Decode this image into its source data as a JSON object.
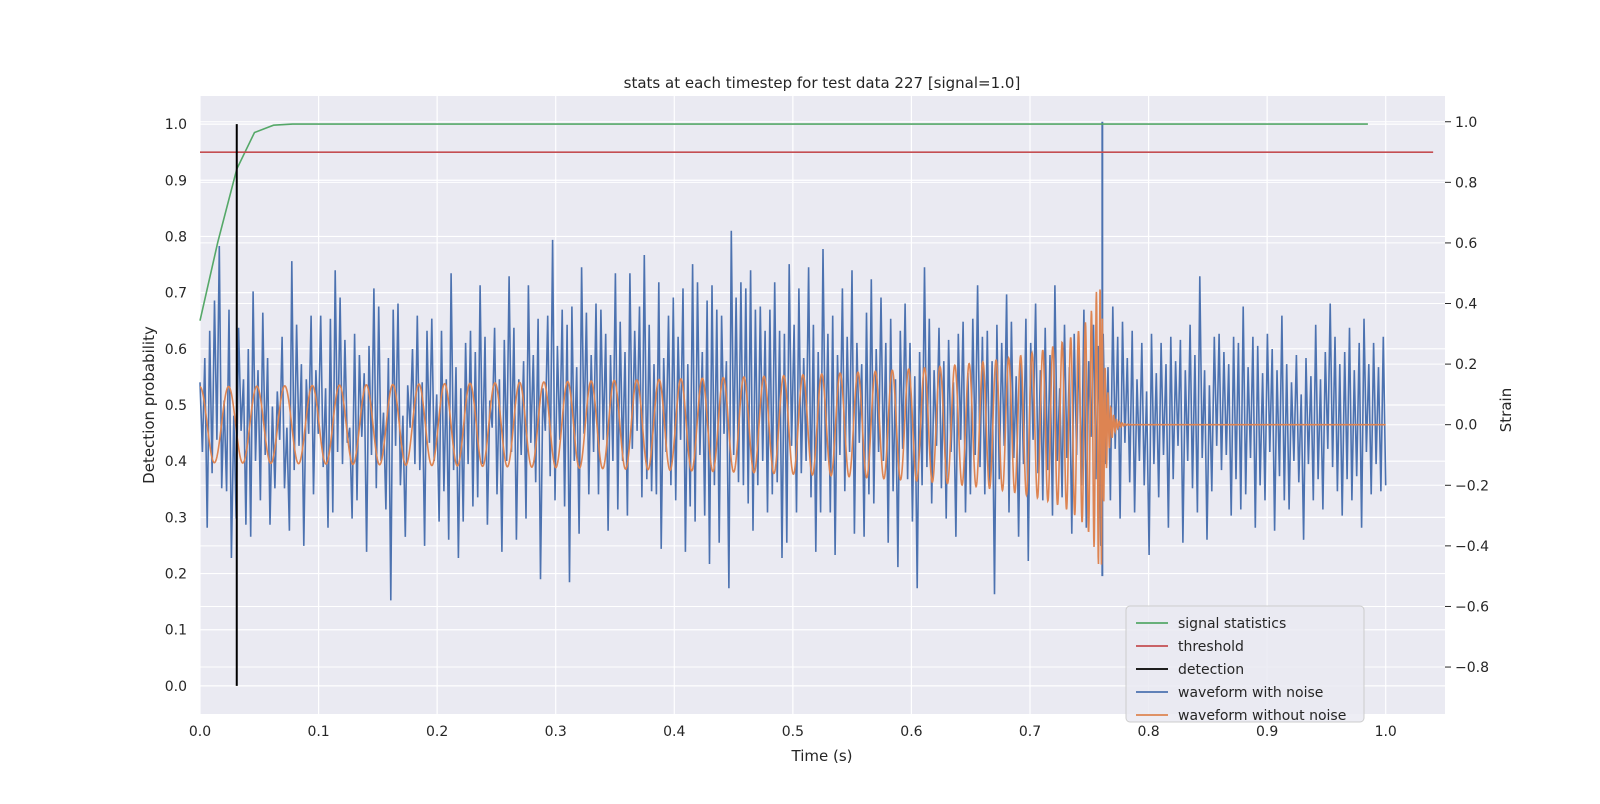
{
  "chart_data": {
    "type": "line",
    "title": "stats at each timestep for test data 227 [signal=1.0]",
    "xlabel": "Time (s)",
    "ylabel": "Detection probability",
    "y2label": "Strain",
    "xlim": [
      0.0,
      1.05
    ],
    "ylim": [
      -0.05,
      1.05
    ],
    "y2lim": [
      -0.955,
      1.085
    ],
    "grid": true,
    "xticks": [
      "0.0",
      "0.1",
      "0.2",
      "0.3",
      "0.4",
      "0.5",
      "0.6",
      "0.7",
      "0.8",
      "0.9",
      "1.0"
    ],
    "yticks": [
      "0.0",
      "0.1",
      "0.2",
      "0.3",
      "0.4",
      "0.5",
      "0.6",
      "0.7",
      "0.8",
      "0.9",
      "1.0"
    ],
    "y2ticks": [
      "−0.8",
      "−0.6",
      "−0.4",
      "−0.2",
      "0.0",
      "0.2",
      "0.4",
      "0.6",
      "0.8",
      "1.0"
    ],
    "legend_position": "lower-right",
    "colors": {
      "signal_statistics": "#55a868",
      "threshold": "#c44e52",
      "detection": "#000000",
      "waveform_with_noise": "#4c72b0",
      "waveform_without_noise": "#dd8452",
      "axes_bg": "#eaeaf2"
    },
    "series": [
      {
        "name": "signal statistics",
        "axis": "left",
        "x": [
          0.0,
          0.015,
          0.031,
          0.046,
          0.062,
          0.078,
          0.1,
          0.3,
          0.5,
          0.7,
          0.985
        ],
        "y": [
          0.65,
          0.79,
          0.92,
          0.985,
          0.998,
          1.0,
          1.0,
          1.0,
          1.0,
          1.0,
          1.0
        ]
      },
      {
        "name": "threshold",
        "axis": "left",
        "x": [
          0.0,
          1.04
        ],
        "y": [
          0.95,
          0.95
        ]
      },
      {
        "name": "detection",
        "axis": "left",
        "x": [
          0.031,
          0.031
        ],
        "y": [
          0.0,
          1.0
        ]
      },
      {
        "name": "waveform with noise",
        "axis": "right",
        "x_range": [
          0.0,
          1.0
        ],
        "y": [
          0.14,
          -0.09,
          0.22,
          -0.34,
          0.31,
          -0.16,
          0.41,
          -0.05,
          0.59,
          -0.21,
          0.08,
          -0.22,
          0.38,
          -0.44,
          0.03,
          -0.31,
          0.32,
          -0.02,
          0.15,
          -0.33,
          0.25,
          -0.37,
          0.44,
          -0.12,
          0.18,
          -0.25,
          0.37,
          -0.1,
          0.22,
          -0.33,
          0.06,
          -0.21,
          0.11,
          -0.05,
          0.29,
          -0.21,
          -0.01,
          -0.35,
          0.54,
          -0.15,
          0.33,
          -0.07,
          0.2,
          -0.4,
          0.15,
          -0.03,
          0.36,
          -0.23,
          0.18,
          -0.03,
          0.36,
          -0.14,
          0.12,
          -0.34,
          0.35,
          -0.29,
          0.51,
          -0.09,
          0.42,
          -0.13,
          0.28,
          -0.06,
          -0.01,
          -0.31,
          0.3,
          -0.25,
          0.23,
          -0.04,
          0.17,
          -0.42,
          0.26,
          -0.1,
          0.45,
          -0.21,
          0.39,
          -0.12,
          0.04,
          -0.28,
          0.22,
          -0.58,
          0.38,
          -0.07,
          0.4,
          -0.2,
          0.03,
          -0.37,
          0.13,
          -0.01,
          0.25,
          -0.13,
          0.36,
          -0.15,
          0.14,
          -0.4,
          0.31,
          -0.06,
          0.35,
          -0.12,
          0.1,
          -0.32,
          0.31,
          -0.22,
          0.15,
          -0.38,
          0.5,
          -0.15,
          0.19,
          -0.44,
          0.12,
          -0.32,
          0.27,
          -0.13,
          0.31,
          -0.27,
          0.24,
          -0.24,
          0.46,
          -0.13,
          0.29,
          -0.33,
          0.08,
          -0.01,
          0.32,
          -0.23,
          0.15,
          -0.42,
          0.28,
          -0.12,
          0.49,
          -0.09,
          0.32,
          -0.38,
          0.15,
          -0.1,
          0.21,
          -0.31,
          0.46,
          -0.06,
          0.23,
          -0.19,
          0.35,
          -0.51,
          0.12,
          -0.02,
          0.36,
          -0.17,
          0.61,
          -0.25,
          0.26,
          -0.05,
          0.38,
          -0.27,
          0.33,
          -0.52,
          0.39,
          -0.12,
          0.19,
          -0.36,
          0.52,
          -0.03,
          0.37,
          -0.23,
          0.23,
          -0.09,
          0.4,
          -0.23,
          0.38,
          -0.05,
          0.3,
          -0.35,
          0.23,
          -0.12,
          0.5,
          -0.28,
          0.34,
          -0.12,
          0.24,
          -0.3,
          0.5,
          -0.08,
          0.31,
          -0.02,
          0.39,
          -0.24,
          0.56,
          -0.18,
          0.33,
          -0.22,
          0.2,
          -0.23,
          0.47,
          -0.41,
          0.22,
          -0.09,
          0.36,
          -0.2,
          0.42,
          -0.25,
          0.29,
          -0.05,
          0.45,
          -0.42,
          0.2,
          -0.27,
          0.53,
          -0.32,
          0.47,
          -0.1,
          0.24,
          -0.3,
          0.41,
          -0.46,
          0.46,
          -0.2,
          0.38,
          -0.39,
          0.36,
          -0.03,
          0.21,
          -0.54,
          0.64,
          -0.1,
          0.42,
          -0.19,
          0.47,
          -0.2,
          0.45,
          -0.26,
          0.51,
          -0.35,
          0.38,
          -0.2,
          0.39,
          -0.12,
          0.31,
          -0.29,
          0.38,
          -0.23,
          0.47,
          -0.19,
          0.31,
          -0.44,
          0.3,
          -0.39,
          0.53,
          -0.07,
          0.33,
          -0.29,
          0.45,
          -0.16,
          0.22,
          -0.12,
          0.52,
          -0.24,
          0.33,
          -0.42,
          0.24,
          -0.29,
          0.58,
          -0.12,
          0.3,
          -0.29,
          0.36,
          -0.43,
          0.23,
          -0.1,
          0.45,
          -0.22,
          0.29,
          -0.09,
          0.51,
          -0.36,
          0.27,
          -0.06,
          0.2,
          -0.37,
          0.37,
          -0.23,
          0.48,
          -0.26,
          0.25,
          -0.09,
          0.42,
          -0.12,
          0.27,
          -0.39,
          0.35,
          -0.22,
          0.15,
          -0.47,
          0.31,
          -0.08,
          0.4,
          -0.18,
          0.27,
          -0.32,
          0.16,
          -0.54,
          0.24,
          -0.2,
          0.52,
          -0.14,
          0.35,
          -0.26,
          0.18,
          -0.07,
          0.32,
          -0.21,
          0.21,
          -0.31,
          0.28,
          -0.09,
          0.14,
          -0.37,
          0.3,
          -0.05,
          0.34,
          -0.29,
          0.17,
          -0.23,
          0.35,
          -0.1,
          0.46,
          -0.14,
          0.29,
          -0.23,
          0.31,
          -0.21,
          0.21,
          -0.56,
          0.33,
          -0.18,
          0.27,
          -0.07,
          0.43,
          -0.29,
          0.34,
          -0.11,
          0.16,
          -0.37,
          0.21,
          -0.13,
          0.35,
          -0.45,
          0.27,
          -0.05,
          0.4,
          -0.16,
          0.18,
          -0.25,
          0.32,
          -0.15,
          0.23,
          -0.3,
          0.46,
          -0.12,
          0.12,
          -0.24,
          0.33,
          -0.11,
          0.19,
          -0.36,
          0.3,
          -0.1,
          0.26,
          -0.2,
          0.38,
          -0.34,
          0.21,
          -0.04,
          0.33,
          -0.18,
          0.26,
          -0.4,
          0.3,
          -0.13,
          0.19,
          -0.25,
          0.39,
          -0.08,
          0.29,
          -0.31,
          0.34,
          -0.06,
          0.22,
          -0.19,
          0.31,
          -0.29,
          0.15,
          -0.12,
          0.27,
          -0.2,
          0.11,
          -0.43,
          0.3,
          -0.13,
          0.17,
          -0.24,
          0.27,
          -0.1,
          0.2,
          -0.34,
          0.29,
          -0.18,
          0.21,
          -0.07,
          0.28,
          -0.39,
          0.18,
          -0.12,
          0.33,
          -0.21,
          0.23,
          -0.29,
          0.49,
          -0.11,
          0.18,
          -0.38,
          0.13,
          -0.22,
          0.29,
          -0.07,
          0.3,
          -0.15,
          0.24,
          -0.1,
          0.2,
          -0.3,
          0.29,
          -0.18,
          0.27,
          -0.28,
          0.39,
          -0.23,
          0.19,
          -0.11,
          0.29,
          -0.34,
          0.26,
          -0.2,
          0.17,
          -0.25,
          0.3,
          -0.09,
          0.25,
          -0.35,
          0.18,
          -0.17,
          0.36,
          -0.25,
          0.2,
          -0.28,
          0.14,
          -0.12,
          0.23,
          -0.19,
          0.1,
          -0.38,
          0.22,
          -0.13,
          0.16,
          -0.25,
          0.33,
          -0.18,
          0.15,
          -0.28,
          0.24,
          -0.08,
          0.4,
          -0.14,
          0.29,
          -0.22,
          0.2,
          -0.3,
          0.24,
          -0.18,
          0.32,
          -0.25,
          0.18,
          -0.17,
          0.27,
          -0.34,
          0.35,
          -0.09,
          0.2,
          -0.23,
          0.27,
          -0.13,
          0.19,
          -0.22,
          0.29,
          -0.2
        ]
      },
      {
        "name": "waveform without noise",
        "axis": "right",
        "x_range": [
          0.0,
          1.0
        ],
        "formula_note": "chirp ending near t=0.76"
      }
    ],
    "annotations": {
      "noise_spike": {
        "x": 0.761,
        "y2": 1.0
      },
      "merger_time": 0.761
    }
  }
}
